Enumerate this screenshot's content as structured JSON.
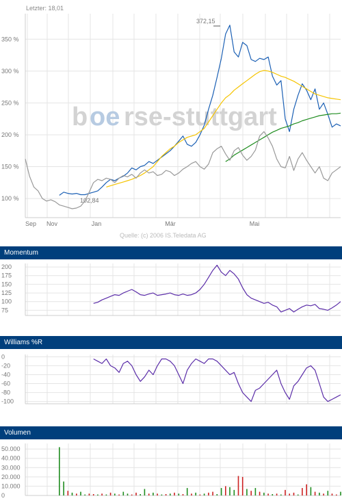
{
  "main_chart": {
    "last_label": "Letzter: 18,01",
    "watermark": {
      "part1": "b",
      "part2": "oe",
      "part3": "rse-stuttgart"
    },
    "source": "Quelle: (c) 2006 IS.Teledata AG",
    "max_label": "372,15",
    "min_label": "102,84",
    "colors": {
      "price": "#1a5fb4",
      "sma_slow": "#f5c400",
      "sma_fast": "#1e8c1e",
      "index": "#999999",
      "grid": "#e4e4e4"
    }
  },
  "chart_data": [
    {
      "type": "line",
      "title": "",
      "x_ticks": [
        "Sep",
        "Nov",
        "Jan",
        "Mär",
        "Mai"
      ],
      "y_ticks": [
        "100 %",
        "150 %",
        "200 %",
        "250 %",
        "300 %",
        "350 %"
      ],
      "y_tick_values": [
        100,
        150,
        200,
        250,
        300,
        350
      ],
      "ylim": [
        70,
        390
      ],
      "series": [
        {
          "color": "#1a5fb4",
          "values": [
            null,
            null,
            null,
            null,
            null,
            null,
            null,
            null,
            105,
            110,
            108,
            107,
            108,
            106,
            106,
            108,
            110,
            112,
            118,
            125,
            130,
            128,
            132,
            135,
            140,
            148,
            145,
            150,
            152,
            158,
            155,
            160,
            165,
            170,
            175,
            182,
            190,
            198,
            185,
            182,
            188,
            200,
            215,
            240,
            262,
            290,
            320,
            358,
            372,
            330,
            322,
            345,
            340,
            318,
            315,
            320,
            318,
            322,
            292,
            278,
            285,
            225,
            205,
            240,
            262,
            280,
            270,
            255,
            272,
            240,
            250,
            232,
            212,
            217,
            214
          ]
        },
        {
          "color": "#f5c400",
          "values": [
            null,
            null,
            null,
            null,
            null,
            null,
            null,
            null,
            null,
            null,
            null,
            null,
            null,
            null,
            null,
            null,
            null,
            null,
            null,
            118,
            120,
            122,
            124,
            126,
            128,
            130,
            133,
            136,
            140,
            145,
            150,
            158,
            166,
            172,
            178,
            182,
            188,
            192,
            196,
            198,
            200,
            205,
            210,
            220,
            230,
            240,
            250,
            258,
            263,
            270,
            275,
            280,
            285,
            290,
            295,
            299,
            301,
            300,
            298,
            295,
            292,
            290,
            287,
            284,
            280,
            276,
            272,
            268,
            264,
            262,
            260,
            258,
            257,
            256,
            255
          ]
        },
        {
          "color": "#1e8c1e",
          "values": [
            null,
            null,
            null,
            null,
            null,
            null,
            null,
            null,
            null,
            null,
            null,
            null,
            null,
            null,
            null,
            null,
            null,
            null,
            null,
            null,
            null,
            null,
            null,
            null,
            null,
            null,
            null,
            null,
            null,
            null,
            null,
            null,
            null,
            null,
            null,
            null,
            null,
            null,
            null,
            null,
            null,
            null,
            null,
            null,
            null,
            null,
            null,
            158,
            162,
            168,
            172,
            176,
            180,
            184,
            188,
            192,
            196,
            200,
            204,
            207,
            210,
            212,
            214,
            217,
            219,
            222,
            224,
            226,
            228,
            230,
            231,
            232,
            233,
            233,
            234
          ]
        },
        {
          "color": "#999999",
          "values": [
            162,
            135,
            118,
            112,
            100,
            96,
            98,
            95,
            90,
            88,
            86,
            84,
            85,
            88,
            96,
            110,
            125,
            130,
            128,
            132,
            130,
            125,
            132,
            136,
            134,
            138,
            132,
            140,
            145,
            140,
            142,
            136,
            138,
            144,
            142,
            136,
            140,
            146,
            150,
            155,
            158,
            150,
            146,
            154,
            172,
            178,
            182,
            170,
            160,
            175,
            180,
            168,
            160,
            166,
            176,
            198,
            205,
            195,
            182,
            162,
            150,
            148,
            166,
            144,
            162,
            172,
            160,
            150,
            140,
            150,
            132,
            128,
            140,
            145,
            150
          ]
        }
      ]
    },
    {
      "type": "line",
      "title": "Momentum",
      "y_ticks": [
        "200",
        "175",
        "150",
        "125",
        "100",
        "75"
      ],
      "y_tick_values": [
        200,
        175,
        150,
        125,
        100,
        75
      ],
      "ylim": [
        60,
        210
      ],
      "series": [
        {
          "color": "#5a2ca8",
          "values": [
            null,
            null,
            null,
            null,
            null,
            null,
            null,
            null,
            null,
            null,
            null,
            null,
            null,
            null,
            null,
            null,
            95,
            98,
            105,
            110,
            115,
            120,
            118,
            125,
            130,
            135,
            128,
            120,
            118,
            122,
            125,
            118,
            120,
            122,
            125,
            120,
            118,
            122,
            118,
            120,
            125,
            135,
            150,
            170,
            190,
            205,
            185,
            175,
            190,
            180,
            165,
            140,
            120,
            110,
            105,
            100,
            95,
            98,
            90,
            85,
            70,
            75,
            80,
            70,
            78,
            85,
            90,
            88,
            92,
            80,
            78,
            75,
            82,
            90,
            100
          ]
        }
      ]
    },
    {
      "type": "line",
      "title": "Williams %R",
      "y_ticks": [
        "0",
        "-20",
        "-40",
        "-60",
        "-80",
        "-100"
      ],
      "y_tick_values": [
        0,
        -20,
        -40,
        -60,
        -80,
        -100
      ],
      "ylim": [
        -105,
        5
      ],
      "series": [
        {
          "color": "#5a2ca8",
          "values": [
            null,
            null,
            null,
            null,
            null,
            null,
            null,
            null,
            null,
            null,
            null,
            null,
            null,
            null,
            null,
            null,
            -5,
            -10,
            -15,
            -5,
            -20,
            -25,
            -35,
            -15,
            -10,
            -20,
            -40,
            -55,
            -45,
            -30,
            -40,
            -20,
            -5,
            -5,
            -10,
            -20,
            -40,
            -60,
            -30,
            -15,
            -5,
            -10,
            -15,
            -5,
            -5,
            -10,
            -20,
            -30,
            -40,
            -35,
            -60,
            -80,
            -90,
            -100,
            -75,
            -70,
            -60,
            -50,
            -40,
            -30,
            -60,
            -80,
            -95,
            -65,
            -55,
            -40,
            -25,
            -20,
            -30,
            -60,
            -90,
            -100,
            -95,
            -90,
            -85
          ]
        }
      ]
    },
    {
      "type": "bar",
      "title": "Volumen",
      "y_ticks": [
        "50.000",
        "40.000",
        "30.000",
        "20.000",
        "10.000",
        "0"
      ],
      "y_tick_values": [
        50000,
        40000,
        30000,
        20000,
        10000,
        0
      ],
      "ylim": [
        0,
        56000
      ],
      "colors": {
        "up": "#1e8c1e",
        "down": "#cc2222"
      },
      "values": [
        0,
        0,
        0,
        0,
        0,
        0,
        0,
        0,
        52000,
        15000,
        5000,
        3000,
        2000,
        4000,
        1000,
        2000,
        1500,
        1000,
        2000,
        1000,
        3000,
        2000,
        1000,
        4000,
        2000,
        1000,
        3000,
        1500,
        7000,
        2000,
        3000,
        2000,
        1000,
        1500,
        2000,
        3000,
        2000,
        1500,
        8000,
        2000,
        3000,
        1000,
        2000,
        3000,
        4000,
        1500,
        8000,
        10000,
        9000,
        6000,
        21000,
        20000,
        7000,
        5000,
        8000,
        4000,
        3000,
        2000,
        1500,
        2000,
        1000,
        6000,
        2000,
        3000,
        1000,
        8000,
        12000,
        9000,
        4000,
        3000,
        2000,
        5000,
        2000,
        1000,
        4000
      ],
      "directions": [
        "u",
        "u",
        "u",
        "u",
        "u",
        "u",
        "u",
        "u",
        "u",
        "u",
        "d",
        "u",
        "d",
        "u",
        "u",
        "d",
        "d",
        "u",
        "d",
        "u",
        "d",
        "u",
        "d",
        "u",
        "u",
        "d",
        "d",
        "u",
        "u",
        "d",
        "u",
        "d",
        "u",
        "d",
        "u",
        "d",
        "u",
        "d",
        "u",
        "d",
        "u",
        "d",
        "u",
        "d",
        "d",
        "u",
        "u",
        "d",
        "u",
        "u",
        "d",
        "d",
        "u",
        "d",
        "u",
        "d",
        "u",
        "d",
        "u",
        "d",
        "u",
        "d",
        "d",
        "d",
        "u",
        "d",
        "d",
        "u",
        "d",
        "u",
        "d",
        "u",
        "d",
        "d",
        "u"
      ]
    }
  ]
}
